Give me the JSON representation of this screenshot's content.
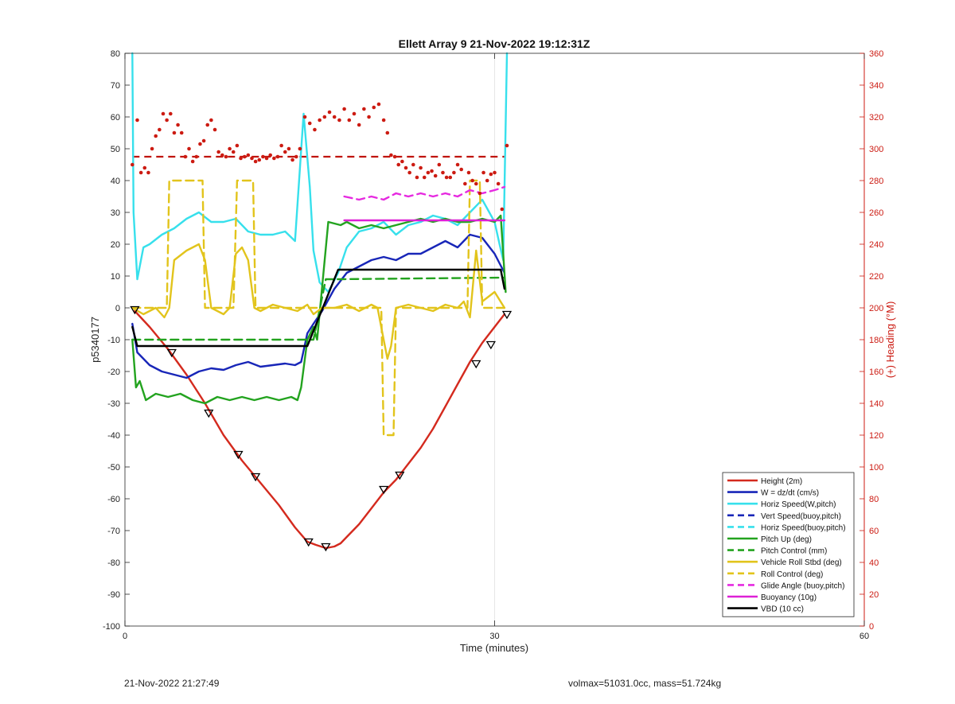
{
  "chart_data": {
    "type": "line",
    "title": "Ellett Array 9 21-Nov-2022 19:12:31Z",
    "xlabel": "Time (minutes)",
    "ylabel_left": "p5340177",
    "ylabel_right": "(+) Heading (°M)",
    "xlim": [
      0,
      60
    ],
    "ylim_left": [
      -100,
      80
    ],
    "ylim_right": [
      0,
      360
    ],
    "x_ticks": [
      "0",
      "30",
      "60"
    ],
    "y_ticks_left": [
      "80",
      "70",
      "60",
      "50",
      "40",
      "30",
      "20",
      "10",
      "0",
      "-10",
      "-20",
      "-30",
      "-40",
      "-50",
      "-60",
      "-70",
      "-80",
      "-90",
      "-100"
    ],
    "y_ticks_right": [
      "360",
      "340",
      "320",
      "300",
      "280",
      "260",
      "240",
      "220",
      "200",
      "180",
      "160",
      "140",
      "120",
      "100",
      "80",
      "60",
      "40",
      "20",
      "0"
    ],
    "grid": "x-only",
    "legend_position": "bottom-right",
    "series": [
      {
        "name": "Height (2m)",
        "color": "#d42a1e",
        "dash": "solid",
        "x": [
          0.8,
          2,
          3.5,
          5,
          6.5,
          8,
          9.5,
          11,
          12.5,
          13.8,
          14.8,
          15.5,
          16.3,
          17,
          17.5,
          18,
          19,
          20,
          21,
          22,
          23,
          24,
          25,
          26,
          27,
          28,
          29,
          30,
          30.8
        ],
        "y": [
          -1,
          -6,
          -13,
          -21,
          -30,
          -40,
          -48,
          -55,
          -62,
          -69,
          -73.5,
          -74.5,
          -75.5,
          -75,
          -74,
          -72,
          -68,
          -63,
          -58,
          -54,
          -49,
          -44,
          -38,
          -31,
          -24,
          -17,
          -11,
          -6,
          -2
        ]
      },
      {
        "name": "W = dz/dt (cm/s)",
        "color": "#1826b8",
        "dash": "solid",
        "x": [
          0.6,
          1,
          2,
          3,
          4,
          5,
          6,
          7,
          8,
          9,
          10,
          11,
          12,
          13,
          13.8,
          14.3,
          14.8,
          15.3,
          16,
          17,
          18,
          19,
          20,
          21,
          22,
          23,
          24,
          25,
          26,
          27,
          28,
          29,
          30,
          30.8
        ],
        "y": [
          -5,
          -14,
          -18,
          -20,
          -21,
          -22,
          -20,
          -19,
          -19.5,
          -18,
          -17,
          -18.5,
          -18,
          -17.5,
          -18,
          -17,
          -8,
          -5,
          -1,
          6,
          11,
          13,
          15,
          16,
          15,
          17,
          17,
          19,
          21,
          19,
          23,
          22,
          17,
          11
        ]
      },
      {
        "name": "Horiz Speed(W,pitch)",
        "color": "#37e0ec",
        "dash": "solid",
        "x": [
          0.6,
          0.7,
          1,
          1.5,
          2,
          3,
          4,
          5,
          6,
          7,
          8,
          9,
          10,
          11,
          12,
          13,
          13.8,
          14.5,
          15,
          15.3,
          15.8,
          16.5,
          17.3,
          18,
          19,
          20,
          21,
          22,
          23,
          24,
          25,
          26,
          27,
          28,
          29,
          30,
          30.4,
          30.7,
          31
        ],
        "y": [
          80,
          30,
          9,
          19,
          20,
          23,
          25,
          28,
          30,
          27,
          27,
          28,
          24,
          23,
          23,
          24,
          21,
          61,
          38,
          18,
          8,
          5,
          11,
          19,
          24,
          25,
          27,
          23,
          26,
          27,
          29,
          28,
          26,
          30,
          34,
          27,
          20,
          15,
          80
        ]
      },
      {
        "name": "Vert Speed(buoy,pitch)",
        "color": "#1826b8",
        "dash": "dashed",
        "x": [],
        "y": []
      },
      {
        "name": "Horiz Speed(buoy,pitch)",
        "color": "#37e0ec",
        "dash": "dashed",
        "x": [],
        "y": []
      },
      {
        "name": "Pitch Up (deg)",
        "color": "#23a31f",
        "dash": "solid",
        "x": [
          0.6,
          0.9,
          1.2,
          1.7,
          2.5,
          3.5,
          4.5,
          5.5,
          6.5,
          7.5,
          8.5,
          9.5,
          10.5,
          11.5,
          12.5,
          13.5,
          14,
          14.3,
          14.8,
          15.3,
          15.6,
          16.5,
          17.5,
          18,
          19,
          20,
          21,
          22,
          23,
          24,
          25,
          26,
          27,
          28,
          29,
          30,
          30.5,
          30.9
        ],
        "y": [
          -10,
          -25,
          -23,
          -29,
          -27,
          -28,
          -27,
          -29,
          -30,
          -28,
          -29,
          -28,
          -29,
          -28,
          -29,
          -28,
          -29,
          -25,
          -10,
          -6,
          -10,
          27,
          26,
          27,
          25,
          26,
          25,
          26,
          27,
          28,
          27,
          28,
          27,
          27,
          28,
          27,
          29,
          5
        ]
      },
      {
        "name": "Pitch Control (mm)",
        "color": "#23a31f",
        "dash": "dashed",
        "x": [
          0.6,
          14.8,
          15.3,
          16.3,
          17.2,
          30.8
        ],
        "y": [
          -10,
          -10,
          -10,
          9,
          9,
          9.5
        ]
      },
      {
        "name": "Vehicle Roll Stbd (deg)",
        "color": "#e2c41c",
        "dash": "solid",
        "x": [
          0.6,
          1.5,
          2.5,
          3.2,
          3.6,
          4,
          5,
          6,
          6.5,
          7,
          8,
          8.5,
          9,
          9.5,
          10,
          10.5,
          11,
          12,
          13,
          14,
          14.8,
          15.3,
          16,
          17,
          18,
          19,
          20,
          20.5,
          21,
          21.3,
          21.6,
          22,
          23,
          24,
          25,
          26,
          27,
          27.5,
          28,
          28.5,
          29,
          30,
          30.8
        ],
        "y": [
          0,
          -2,
          0,
          -3,
          0,
          15,
          18,
          20,
          15,
          0,
          -2,
          0,
          17,
          19,
          15,
          0,
          -1,
          1,
          0,
          -1,
          1,
          -2,
          0,
          0,
          1,
          -1,
          1,
          0,
          -10,
          -16,
          -12,
          0,
          1,
          0,
          -1,
          1,
          0,
          2,
          -3,
          18,
          2,
          5,
          0
        ]
      },
      {
        "name": "Roll Control (deg)",
        "color": "#e2c41c",
        "dash": "dashed",
        "x": [
          0.6,
          3.4,
          3.6,
          6.3,
          6.5,
          8.8,
          9.1,
          10.4,
          10.6,
          20.8,
          21,
          21.8,
          22,
          27.8,
          28,
          28.8,
          29,
          30.8
        ],
        "y": [
          0,
          0,
          40,
          40,
          0,
          0,
          40,
          40,
          0,
          0,
          -40,
          -40,
          0,
          0,
          40,
          40,
          0,
          0
        ]
      },
      {
        "name": "Glide Angle (buoy,pitch)",
        "color": "#e62ae0",
        "dash": "dashed",
        "x": [
          17.8,
          19,
          20,
          21,
          22,
          23,
          24,
          25,
          26,
          27,
          28,
          29,
          30,
          30.8
        ],
        "y": [
          35,
          34,
          35,
          34,
          36,
          35,
          36,
          35,
          36,
          35,
          37,
          36,
          37,
          38
        ]
      },
      {
        "name": "Buoyancy (10g)",
        "color": "#dd20d6",
        "dash": "solid",
        "x": [
          17.8,
          30.8
        ],
        "y": [
          27.5,
          27.5
        ]
      },
      {
        "name": "VBD (10 cc)",
        "color": "#000000",
        "dash": "solid",
        "x": [
          0.6,
          1,
          14.8,
          17.3,
          22,
          30.5,
          30.8
        ],
        "y": [
          -6,
          -12,
          -12,
          12,
          12,
          12,
          6
        ]
      }
    ],
    "heading_points": {
      "name": "Heading",
      "color": "#cc1b12",
      "axis": "right",
      "x": [
        0.6,
        1,
        1.3,
        1.6,
        1.9,
        2.2,
        2.5,
        2.8,
        3.1,
        3.4,
        3.7,
        4,
        4.3,
        4.6,
        4.9,
        5.2,
        5.5,
        5.8,
        6.1,
        6.4,
        6.7,
        7,
        7.3,
        7.6,
        7.9,
        8.2,
        8.5,
        8.8,
        9.1,
        9.4,
        9.7,
        10,
        10.3,
        10.6,
        10.9,
        11.2,
        11.5,
        11.8,
        12.1,
        12.4,
        12.7,
        13,
        13.3,
        13.6,
        13.9,
        14.2,
        14.6,
        15,
        15.4,
        15.8,
        16.2,
        16.6,
        17,
        17.4,
        17.8,
        18.2,
        18.6,
        19,
        19.4,
        19.8,
        20.2,
        20.6,
        21,
        21.3,
        21.6,
        21.9,
        22.2,
        22.5,
        22.8,
        23.1,
        23.4,
        23.7,
        24,
        24.3,
        24.6,
        24.9,
        25.2,
        25.5,
        25.8,
        26.1,
        26.4,
        26.7,
        27,
        27.3,
        27.6,
        27.9,
        28.2,
        28.5,
        28.8,
        29.1,
        29.4,
        29.7,
        30,
        30.3,
        30.6,
        31
      ],
      "y": [
        290,
        318,
        285,
        288,
        285,
        300,
        308,
        312,
        322,
        318,
        322,
        310,
        315,
        310,
        295,
        300,
        292,
        295,
        303,
        305,
        315,
        318,
        312,
        298,
        296,
        295,
        300,
        298,
        302,
        294,
        295,
        296,
        294,
        292,
        293,
        295,
        294,
        296,
        294,
        295,
        302,
        298,
        300,
        293,
        295,
        300,
        320,
        316,
        312,
        318,
        320,
        323,
        320,
        318,
        325,
        318,
        322,
        315,
        325,
        320,
        326,
        328,
        318,
        310,
        296,
        295,
        290,
        292,
        288,
        285,
        290,
        282,
        288,
        282,
        285,
        286,
        283,
        290,
        285,
        282,
        282,
        285,
        290,
        287,
        278,
        285,
        280,
        278,
        272,
        285,
        280,
        284,
        285,
        278,
        262,
        302
      ]
    },
    "heading_reference": {
      "color": "#c0140e",
      "axis": "right",
      "y": 295,
      "x": [
        0.6,
        30.8
      ]
    },
    "triangle_markers": {
      "on_series": "Height (2m)",
      "x": [
        0.8,
        3.8,
        6.8,
        9.2,
        10.6,
        14.9,
        16.3,
        21,
        22.3,
        28.5,
        29.7,
        31
      ],
      "y": [
        -0.5,
        -14,
        -33,
        -46,
        -53,
        -73.5,
        -75,
        -57,
        -52.5,
        -17.5,
        -11.5,
        -2
      ]
    }
  },
  "footer": {
    "left": "21-Nov-2022 21:27:49",
    "right": "volmax=51031.0cc, mass=51.724kg"
  }
}
